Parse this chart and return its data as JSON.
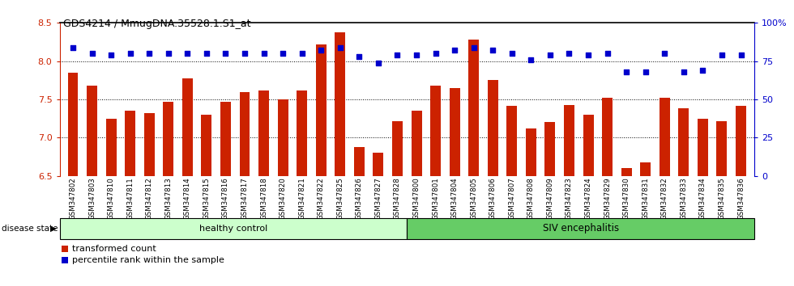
{
  "title": "GDS4214 / MmugDNA.35528.1.S1_at",
  "samples": [
    "GSM347802",
    "GSM347803",
    "GSM347810",
    "GSM347811",
    "GSM347812",
    "GSM347813",
    "GSM347814",
    "GSM347815",
    "GSM347816",
    "GSM347817",
    "GSM347818",
    "GSM347820",
    "GSM347821",
    "GSM347822",
    "GSM347825",
    "GSM347826",
    "GSM347827",
    "GSM347828",
    "GSM347800",
    "GSM347801",
    "GSM347804",
    "GSM347805",
    "GSM347806",
    "GSM347807",
    "GSM347808",
    "GSM347809",
    "GSM347823",
    "GSM347824",
    "GSM347829",
    "GSM347830",
    "GSM347831",
    "GSM347832",
    "GSM347833",
    "GSM347834",
    "GSM347835",
    "GSM347836"
  ],
  "bar_values": [
    7.85,
    7.68,
    7.25,
    7.35,
    7.32,
    7.47,
    7.78,
    7.3,
    7.47,
    7.6,
    7.62,
    7.5,
    7.62,
    8.22,
    8.38,
    6.88,
    6.8,
    7.22,
    7.35,
    7.68,
    7.65,
    8.28,
    7.75,
    7.42,
    7.12,
    7.2,
    7.43,
    7.3,
    7.52,
    6.6,
    6.68,
    7.52,
    7.38,
    7.25,
    7.22,
    7.42
  ],
  "percentile_values": [
    84,
    80,
    79,
    80,
    80,
    80,
    80,
    80,
    80,
    80,
    80,
    80,
    80,
    82,
    84,
    78,
    74,
    79,
    79,
    80,
    82,
    84,
    82,
    80,
    76,
    79,
    80,
    79,
    80,
    68,
    68,
    80,
    68,
    69,
    79,
    79
  ],
  "healthy_count": 18,
  "bar_color": "#cc2200",
  "dot_color": "#0000cc",
  "ylim_left": [
    6.5,
    8.5
  ],
  "ylim_right": [
    0,
    100
  ],
  "yticks_left": [
    6.5,
    7.0,
    7.5,
    8.0,
    8.5
  ],
  "yticks_right": [
    0,
    25,
    50,
    75,
    100
  ],
  "ytick_right_labels": [
    "0",
    "25",
    "50",
    "75",
    "100%"
  ],
  "grid_values": [
    7.0,
    7.5,
    8.0
  ],
  "healthy_label": "healthy control",
  "siv_label": "SIV encephalitis",
  "disease_state_label": "disease state",
  "legend_bar_label": "transformed count",
  "legend_dot_label": "percentile rank within the sample",
  "healthy_color": "#ccffcc",
  "siv_color": "#66cc66",
  "tick_area_color": "#cccccc",
  "bar_bottom": 6.5
}
